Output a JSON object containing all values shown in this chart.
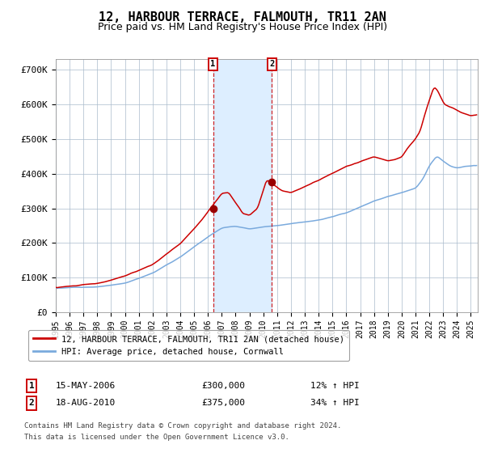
{
  "title": "12, HARBOUR TERRACE, FALMOUTH, TR11 2AN",
  "subtitle": "Price paid vs. HM Land Registry's House Price Index (HPI)",
  "title_fontsize": 11,
  "subtitle_fontsize": 9,
  "ylabel_ticks": [
    "£0",
    "£100K",
    "£200K",
    "£300K",
    "£400K",
    "£500K",
    "£600K",
    "£700K"
  ],
  "ytick_values": [
    0,
    100000,
    200000,
    300000,
    400000,
    500000,
    600000,
    700000
  ],
  "ylim": [
    0,
    730000
  ],
  "sale1_year": 2006.37,
  "sale1_value": 300000,
  "sale1_label": "1",
  "sale1_date_str": "15-MAY-2006",
  "sale1_price_str": "£300,000",
  "sale1_hpi_str": "12% ↑ HPI",
  "sale2_year": 2010.62,
  "sale2_value": 375000,
  "sale2_label": "2",
  "sale2_date_str": "18-AUG-2010",
  "sale2_price_str": "£375,000",
  "sale2_hpi_str": "34% ↑ HPI",
  "hpi_line_color": "#7aaadd",
  "price_line_color": "#cc0000",
  "sale_dot_color": "#990000",
  "shade_color": "#ddeeff",
  "grid_color": "#aabbcc",
  "background_color": "#ffffff",
  "legend_line1": "12, HARBOUR TERRACE, FALMOUTH, TR11 2AN (detached house)",
  "legend_line2": "HPI: Average price, detached house, Cornwall",
  "footnote_line1": "Contains HM Land Registry data © Crown copyright and database right 2024.",
  "footnote_line2": "This data is licensed under the Open Government Licence v3.0.",
  "xlim_start": 1995,
  "xlim_end": 2025.5
}
